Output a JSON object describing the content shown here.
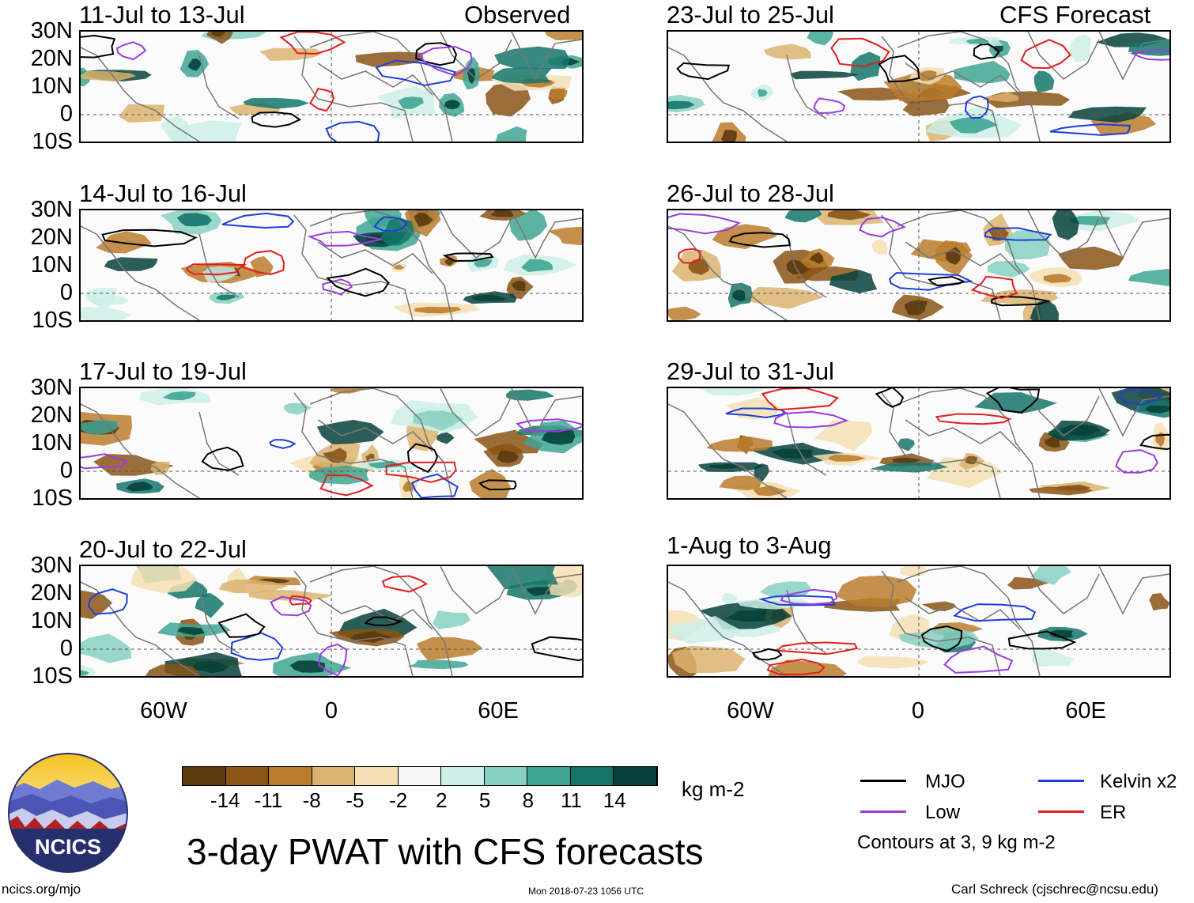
{
  "panels": {
    "left": [
      {
        "title": "11-Jul to 13-Jul",
        "source": "Observed"
      },
      {
        "title": "14-Jul to 16-Jul",
        "source": ""
      },
      {
        "title": "17-Jul to 19-Jul",
        "source": ""
      },
      {
        "title": "20-Jul to 22-Jul",
        "source": ""
      }
    ],
    "right": [
      {
        "title": "23-Jul to 25-Jul",
        "source": "CFS Forecast"
      },
      {
        "title": "26-Jul to 28-Jul",
        "source": ""
      },
      {
        "title": "29-Jul to 31-Jul",
        "source": ""
      },
      {
        "title": "1-Aug to 3-Aug",
        "source": ""
      }
    ]
  },
  "axes": {
    "lat_labels": [
      "30N",
      "20N",
      "10N",
      "0",
      "10S"
    ],
    "lon_labels": [
      "60W",
      "0",
      "60E"
    ]
  },
  "colorbar": {
    "colors": [
      "#5b3a0e",
      "#8a5416",
      "#bb7d2c",
      "#dbb36e",
      "#f3dfb3",
      "#f7f7f7",
      "#cdeee6",
      "#86d0c0",
      "#3fa593",
      "#14766a",
      "#06423b"
    ],
    "labels": [
      "-14",
      "-11",
      "-8",
      "-5",
      "-2",
      "2",
      "5",
      "8",
      "11",
      "14"
    ],
    "units": "kg m-2"
  },
  "legend": {
    "items": [
      {
        "label": "MJO",
        "color": "#000000"
      },
      {
        "label": "Kelvin x2",
        "color": "#1f3fd6"
      },
      {
        "label": "Low",
        "color": "#9a3de0"
      },
      {
        "label": "ER",
        "color": "#e01f1f"
      }
    ],
    "note": "Contours at 3, 9 kg m-2"
  },
  "title": "3-day PWAT with CFS forecasts",
  "logo_text": "NCICS",
  "footer": {
    "url": "ncics.org/mjo",
    "timestamp": "Mon 2018-07-23 1056 UTC",
    "credit": "Carl Schreck (cjschrec@ncsu.edu)"
  }
}
